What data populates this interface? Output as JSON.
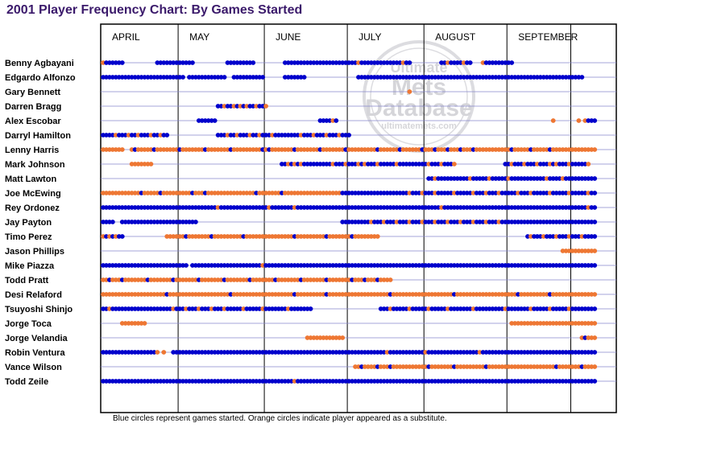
{
  "title": "2001 Player Frequency Chart: By Games Started",
  "footnote": "Blue circles represent games started. Orange circles indicate player appeared as a substitute.",
  "watermark": {
    "line1": "Ultimate",
    "line2": "Mets",
    "line3": "Database",
    "url": "ultimatemets.com"
  },
  "colors": {
    "started": "#0000cc",
    "substitute": "#ee7733",
    "title": "#3b1a6b",
    "row_line": "#8888cc"
  },
  "chart_data": {
    "type": "scatter",
    "title": "2001 Player Frequency Chart: By Games Started",
    "months": [
      "APRIL",
      "MAY",
      "JUNE",
      "JULY",
      "AUGUST",
      "SEPTEMBER"
    ],
    "game_scale": [
      0,
      160
    ],
    "month_starts": [
      0,
      24,
      51,
      77,
      101,
      127,
      147
    ],
    "legend": {
      "started": "Blue circles represent games started",
      "substitute": "Orange circles indicate player appeared as a substitute"
    },
    "players": [
      {
        "name": "Benny Agbayani",
        "segments": [
          [
            0,
            6,
            "b"
          ],
          [
            17,
            28,
            "b"
          ],
          [
            39,
            47,
            "b"
          ],
          [
            57,
            80,
            "b"
          ],
          [
            81,
            88,
            "b"
          ],
          [
            89,
            96,
            "b"
          ],
          [
            106,
            115,
            "b"
          ],
          [
            120,
            128,
            "b"
          ]
        ],
        "subs": [
          0,
          80,
          94,
          108,
          113,
          119
        ]
      },
      {
        "name": "Edgardo Alfonzo",
        "segments": [
          [
            0,
            25,
            "b"
          ],
          [
            27,
            38,
            "b"
          ],
          [
            41,
            50,
            "b"
          ],
          [
            57,
            63,
            "b"
          ],
          [
            80,
            150,
            "b"
          ]
        ],
        "subs": []
      },
      {
        "name": "Gary Bennett",
        "segments": [],
        "subs": [
          96
        ]
      },
      {
        "name": "Darren Bragg",
        "segments": [
          [
            36,
            51,
            "b"
          ]
        ],
        "subs": [
          38,
          41,
          43,
          45,
          48,
          51
        ]
      },
      {
        "name": "Alex Escobar",
        "segments": [
          [
            30,
            35,
            "b"
          ],
          [
            68,
            73,
            "b"
          ],
          [
            151,
            154,
            "b"
          ]
        ],
        "subs": [
          72,
          141,
          149,
          151
        ]
      },
      {
        "name": "Darryl Hamilton",
        "segments": [
          [
            0,
            20,
            "b"
          ],
          [
            36,
            63,
            "b"
          ],
          [
            64,
            77,
            "b"
          ]
        ],
        "subs": [
          4,
          8,
          11,
          15,
          18,
          39,
          42,
          46,
          49,
          53,
          62,
          66,
          70,
          74
        ]
      },
      {
        "name": "Lenny Harris",
        "segments": [
          [
            0,
            6,
            "o"
          ],
          [
            9,
            154,
            "o"
          ]
        ],
        "subs": [],
        "starts": [
          10,
          16,
          24,
          32,
          40,
          50,
          52,
          60,
          68,
          76,
          86,
          93,
          100,
          104,
          108,
          112,
          116,
          128,
          134,
          140
        ]
      },
      {
        "name": "Mark Johnson",
        "segments": [
          [
            9,
            15,
            "o"
          ],
          [
            56,
            110,
            "b"
          ],
          [
            126,
            152,
            "b"
          ]
        ],
        "subs": [
          9,
          13,
          15,
          58,
          60,
          62,
          72,
          76,
          80,
          82,
          86,
          92,
          102,
          106,
          110,
          128,
          132,
          136,
          140,
          142,
          146,
          152
        ]
      },
      {
        "name": "Matt Lawton",
        "segments": [
          [
            102,
            154,
            "b"
          ]
        ],
        "subs": [
          104,
          115,
          121,
          127,
          139,
          144
        ]
      },
      {
        "name": "Joe McEwing",
        "segments": [
          [
            0,
            73,
            "o"
          ],
          [
            75,
            154,
            "b"
          ]
        ],
        "subs": [
          2,
          5,
          9,
          14,
          20,
          26,
          30,
          34,
          38,
          44,
          52,
          58,
          62,
          66,
          70,
          74,
          96,
          100,
          104,
          110,
          116,
          120,
          124,
          130,
          134,
          140,
          146,
          152
        ],
        "starts": [
          12,
          18,
          28,
          32,
          48,
          56
        ]
      },
      {
        "name": "Rey Ordonez",
        "segments": [
          [
            0,
            154,
            "b"
          ]
        ],
        "subs": [
          36,
          52,
          60,
          106,
          152
        ]
      },
      {
        "name": "Jay Payton",
        "segments": [
          [
            0,
            3,
            "b"
          ],
          [
            6,
            29,
            "b"
          ],
          [
            75,
            154,
            "b"
          ]
        ],
        "subs": [
          84,
          88,
          92,
          96,
          100,
          104,
          108,
          112,
          116,
          120,
          124
        ]
      },
      {
        "name": "Timo Perez",
        "segments": [
          [
            0,
            6,
            "b"
          ],
          [
            20,
            86,
            "o"
          ],
          [
            133,
            154,
            "b"
          ]
        ],
        "subs": [
          0,
          2,
          4,
          22,
          28,
          32,
          38,
          42,
          48,
          52,
          58,
          62,
          68,
          72,
          76,
          80,
          84,
          86,
          134,
          138,
          142,
          146,
          150
        ],
        "starts": [
          26,
          34,
          44,
          60,
          70,
          78
        ]
      },
      {
        "name": "Jason Phillips",
        "segments": [
          [
            144,
            154,
            "o"
          ]
        ],
        "subs": [
          144,
          149,
          151,
          153,
          154
        ]
      },
      {
        "name": "Mike Piazza",
        "segments": [
          [
            0,
            26,
            "b"
          ],
          [
            28,
            154,
            "b"
          ]
        ],
        "subs": [
          50
        ]
      },
      {
        "name": "Todd Pratt",
        "segments": [
          [
            0,
            90,
            "o"
          ]
        ],
        "subs": [
          0,
          4,
          8,
          12,
          16,
          20,
          24,
          28,
          32,
          36,
          40,
          44,
          48,
          52,
          56,
          60,
          64,
          68,
          72,
          76,
          80,
          84,
          88
        ],
        "starts": [
          2,
          6,
          14,
          22,
          30,
          38,
          46,
          54,
          62,
          70,
          78,
          82,
          86
        ]
      },
      {
        "name": "Desi Relaford",
        "segments": [
          [
            0,
            154,
            "o"
          ]
        ],
        "subs": [
          0,
          3,
          6,
          9,
          12,
          15,
          18,
          21,
          24,
          27,
          30,
          33,
          36,
          39,
          42,
          45,
          48,
          51,
          54,
          57,
          60,
          63,
          66,
          69,
          72,
          75,
          78,
          81,
          84,
          87,
          90,
          93,
          96,
          99,
          102,
          105,
          108,
          111,
          114,
          117,
          120,
          123,
          126,
          129,
          132,
          135,
          138,
          141,
          144,
          147,
          150,
          153
        ],
        "starts": [
          20,
          40,
          60,
          70,
          90,
          110,
          130,
          140
        ]
      },
      {
        "name": "Tsuyoshi Shinjo",
        "segments": [
          [
            0,
            65,
            "b"
          ],
          [
            87,
            154,
            "b"
          ]
        ],
        "subs": [
          2,
          22,
          26,
          30,
          34,
          38,
          44,
          50,
          58,
          90,
          96,
          102,
          108,
          116,
          126,
          134,
          140,
          146
        ]
      },
      {
        "name": "Jorge Toca",
        "segments": [
          [
            6,
            13,
            "o"
          ],
          [
            128,
            154,
            "o"
          ]
        ],
        "subs": [
          6,
          8,
          10,
          13,
          128,
          131,
          134,
          145,
          148
        ]
      },
      {
        "name": "Jorge Velandia",
        "segments": [
          [
            64,
            75,
            "o"
          ],
          [
            150,
            154,
            "o"
          ]
        ],
        "subs": [
          64,
          67,
          71,
          75,
          150,
          152,
          154
        ],
        "starts": [
          151
        ]
      },
      {
        "name": "Robin Ventura",
        "segments": [
          [
            0,
            17,
            "b"
          ],
          [
            22,
            154,
            "b"
          ]
        ],
        "subs": [
          17,
          19,
          89,
          101,
          118
        ]
      },
      {
        "name": "Vance Wilson",
        "segments": [
          [
            79,
            154,
            "o"
          ]
        ],
        "subs": [
          79,
          83,
          88,
          92,
          96,
          100,
          104,
          108,
          112,
          116,
          120,
          124,
          128,
          132,
          136,
          140,
          144,
          148,
          152
        ],
        "starts": [
          81,
          86,
          90,
          102,
          110,
          120,
          142,
          150
        ]
      },
      {
        "name": "Todd Zeile",
        "segments": [
          [
            0,
            154,
            "b"
          ]
        ],
        "subs": [
          60
        ]
      }
    ]
  }
}
